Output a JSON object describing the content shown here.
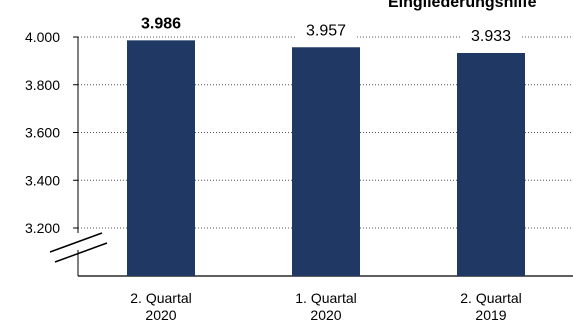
{
  "title_partial": "Eingliederungshilfe",
  "chart_data": {
    "type": "bar",
    "categories": [
      [
        "2. Quartal",
        "2020"
      ],
      [
        "1. Quartal",
        "2020"
      ],
      [
        "2. Quartal",
        "2019"
      ]
    ],
    "values": [
      3986,
      3957,
      3933
    ],
    "value_labels": [
      "3.986",
      "3.957",
      "3.933"
    ],
    "value_label_bold": [
      true,
      false,
      false
    ],
    "yticks": [
      3200,
      3400,
      3600,
      3800,
      4000
    ],
    "ytick_labels": [
      "3.200",
      "3.400",
      "3.600",
      "3.800",
      "4.000"
    ],
    "ylim": [
      3200,
      4000
    ],
    "axis_break": true,
    "grid": "dotted",
    "bar_color": "#1f3864"
  }
}
